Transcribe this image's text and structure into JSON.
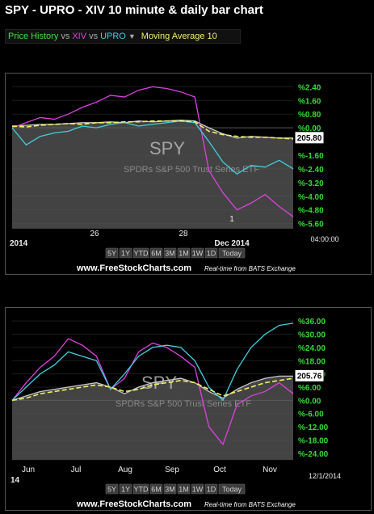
{
  "title": "SPY - UPRO - XIV 10 minute & daily bar chart",
  "legend": {
    "price_history": "Price History",
    "vs1": "vs",
    "xiv": "XIV",
    "vs2": "vs",
    "upro": "UPRO",
    "dropdown_icon": "caret-down-icon",
    "moving_average": "Moving Average 10"
  },
  "colors": {
    "spy": "#c8c8c8",
    "xiv": "#e040e0",
    "upro": "#40d0e0",
    "ma": "#f0f060",
    "axis_label": "#33dd33",
    "background": "#000000"
  },
  "watermark": {
    "symbol": "SPY",
    "name": "SPDRs S&P 500 Trust Series ETF"
  },
  "range_buttons": [
    "5Y",
    "1Y",
    "YTD",
    "6M",
    "3M",
    "1M",
    "1W",
    "1D",
    "Today"
  ],
  "footer": {
    "site": "www.FreeStockCharts.com",
    "realtime": "Real-time from BATS Exchange"
  },
  "chart_data": [
    {
      "type": "line",
      "title": "",
      "interval": "10 minute",
      "y_ticks": [
        "%2.40",
        "%1.60",
        "%0.80",
        "%0.00",
        "%-1.60",
        "%-2.40",
        "%-3.20",
        "%-4.00",
        "%-4.80",
        "%-5.60"
      ],
      "ylim": [
        -5.9,
        2.7
      ],
      "price_label": "205.80",
      "x_ticks": [
        "2014",
        "26",
        "28",
        "1",
        "Dec 2014",
        "04:00:00"
      ],
      "series": [
        {
          "name": "SPY",
          "x": [
            0,
            5,
            10,
            15,
            20,
            25,
            30,
            35,
            40,
            45,
            50,
            55,
            60,
            65,
            70,
            75,
            80,
            85,
            90,
            95,
            100
          ],
          "values": [
            0.1,
            0.15,
            0.2,
            0.2,
            0.25,
            0.3,
            0.3,
            0.35,
            0.3,
            0.4,
            0.35,
            0.4,
            0.45,
            0.4,
            0.0,
            -0.35,
            -0.6,
            -0.5,
            -0.55,
            -0.6,
            -0.6
          ]
        },
        {
          "name": "XIV",
          "x": [
            0,
            5,
            10,
            15,
            20,
            25,
            30,
            35,
            40,
            45,
            50,
            55,
            60,
            65,
            70,
            75,
            80,
            85,
            90,
            95,
            100
          ],
          "values": [
            0.0,
            0.3,
            0.6,
            0.5,
            0.8,
            1.2,
            1.5,
            1.9,
            1.8,
            2.2,
            2.4,
            2.3,
            2.1,
            1.8,
            -2.5,
            -3.8,
            -4.8,
            -4.4,
            -3.9,
            -4.6,
            -5.2
          ]
        },
        {
          "name": "UPRO",
          "x": [
            0,
            5,
            10,
            15,
            20,
            25,
            30,
            35,
            40,
            45,
            50,
            55,
            60,
            65,
            70,
            75,
            80,
            85,
            90,
            95,
            100
          ],
          "values": [
            0.0,
            -1.0,
            -0.5,
            -0.3,
            -0.2,
            0.1,
            0.0,
            0.2,
            0.3,
            0.1,
            0.2,
            0.3,
            0.4,
            0.3,
            -0.8,
            -2.0,
            -2.7,
            -2.2,
            -2.3,
            -1.9,
            -2.4
          ]
        },
        {
          "name": "Moving Average 10",
          "x": [
            0,
            5,
            10,
            15,
            20,
            25,
            30,
            35,
            40,
            45,
            50,
            55,
            60,
            65,
            70,
            75,
            80,
            85,
            90,
            95,
            100
          ],
          "values": [
            0.1,
            0.05,
            0.15,
            0.2,
            0.25,
            0.2,
            0.3,
            0.3,
            0.35,
            0.35,
            0.4,
            0.4,
            0.4,
            0.35,
            -0.2,
            -0.4,
            -0.5,
            -0.55,
            -0.55,
            -0.6,
            -0.65
          ]
        }
      ]
    },
    {
      "type": "line",
      "title": "",
      "interval": "daily",
      "y_ticks": [
        "%36.00",
        "%30.00",
        "%24.00",
        "%18.00",
        "%12.00",
        "%6.00",
        "%0.00",
        "%-6.00",
        "%-12.00",
        "%-18.00",
        "%-24.00"
      ],
      "ylim": [
        -27,
        39
      ],
      "price_label": "205.76",
      "x_ticks": [
        "Jun",
        "Jul",
        "Aug",
        "Sep",
        "Oct",
        "Nov",
        "14",
        "12/1/2014"
      ],
      "series": [
        {
          "name": "SPY",
          "x": [
            0,
            5,
            10,
            15,
            20,
            25,
            30,
            35,
            40,
            45,
            50,
            55,
            60,
            65,
            70,
            75,
            80,
            85,
            90,
            95,
            100
          ],
          "values": [
            0,
            2,
            4,
            5,
            6,
            7,
            8,
            6,
            3,
            6,
            8,
            9,
            10,
            8,
            4,
            1,
            5,
            8,
            10,
            11,
            11
          ]
        },
        {
          "name": "XIV",
          "x": [
            0,
            5,
            10,
            15,
            20,
            25,
            30,
            35,
            40,
            45,
            50,
            55,
            60,
            65,
            70,
            75,
            80,
            85,
            90,
            95,
            100
          ],
          "values": [
            0,
            8,
            15,
            20,
            28,
            25,
            20,
            5,
            10,
            22,
            26,
            24,
            20,
            15,
            -12,
            -20,
            -2,
            2,
            4,
            8,
            3
          ]
        },
        {
          "name": "UPRO",
          "x": [
            0,
            5,
            10,
            15,
            20,
            25,
            30,
            35,
            40,
            45,
            50,
            55,
            60,
            65,
            70,
            75,
            80,
            85,
            90,
            95,
            100
          ],
          "values": [
            0,
            6,
            12,
            16,
            22,
            20,
            18,
            5,
            12,
            20,
            24,
            25,
            24,
            18,
            6,
            0,
            14,
            24,
            30,
            34,
            35
          ]
        },
        {
          "name": "Moving Average 10",
          "x": [
            0,
            5,
            10,
            15,
            20,
            25,
            30,
            35,
            40,
            45,
            50,
            55,
            60,
            65,
            70,
            75,
            80,
            85,
            90,
            95,
            100
          ],
          "values": [
            0,
            1,
            3,
            4,
            5,
            6,
            7,
            6,
            4,
            5,
            7,
            8,
            9,
            8,
            5,
            2,
            4,
            6,
            8,
            9,
            10
          ]
        }
      ]
    }
  ]
}
